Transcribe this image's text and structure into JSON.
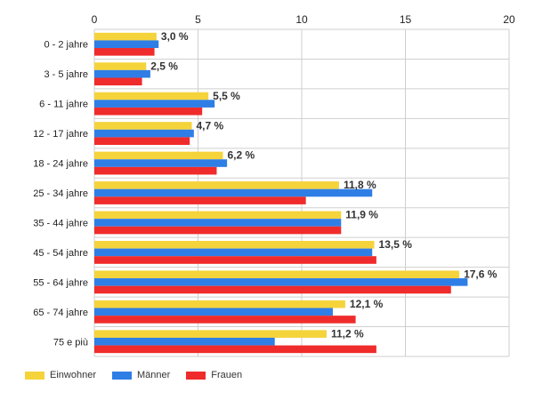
{
  "chart_data": {
    "type": "bar",
    "orientation": "horizontal",
    "categories": [
      "0 - 2 jahre",
      "3 - 5 jahre",
      "6 - 11 jahre",
      "12 - 17 jahre",
      "18 - 24 jahre",
      "25 - 34 jahre",
      "35 - 44 jahre",
      "45 - 54 jahre",
      "55 - 64 jahre",
      "65 - 74 jahre",
      "75 e più"
    ],
    "series": [
      {
        "name": "Einwohner",
        "color": "#f5d33b",
        "values": [
          3.0,
          2.5,
          5.5,
          4.7,
          6.2,
          11.8,
          11.9,
          13.5,
          17.6,
          12.1,
          11.2
        ]
      },
      {
        "name": "Männer",
        "color": "#2f7ee6",
        "values": [
          3.1,
          2.7,
          5.8,
          4.8,
          6.4,
          13.4,
          11.9,
          13.4,
          18.0,
          11.5,
          8.7
        ]
      },
      {
        "name": "Frauen",
        "color": "#f02b2b",
        "values": [
          2.9,
          2.3,
          5.2,
          4.6,
          5.9,
          10.2,
          11.9,
          13.6,
          17.2,
          12.6,
          13.6
        ]
      }
    ],
    "data_labels": [
      "3,0 %",
      "2,5 %",
      "5,5 %",
      "4,7 %",
      "6,2 %",
      "11,8 %",
      "11,9 %",
      "13,5 %",
      "17,6 %",
      "12,1 %",
      "11,2 %"
    ],
    "xlim": [
      0,
      20
    ],
    "x_ticks": [
      "0",
      "5",
      "10",
      "15",
      "20"
    ],
    "x_axis_position": "top",
    "grid": true,
    "legend": "bottom-left",
    "title": "",
    "xlabel": "",
    "ylabel": ""
  }
}
